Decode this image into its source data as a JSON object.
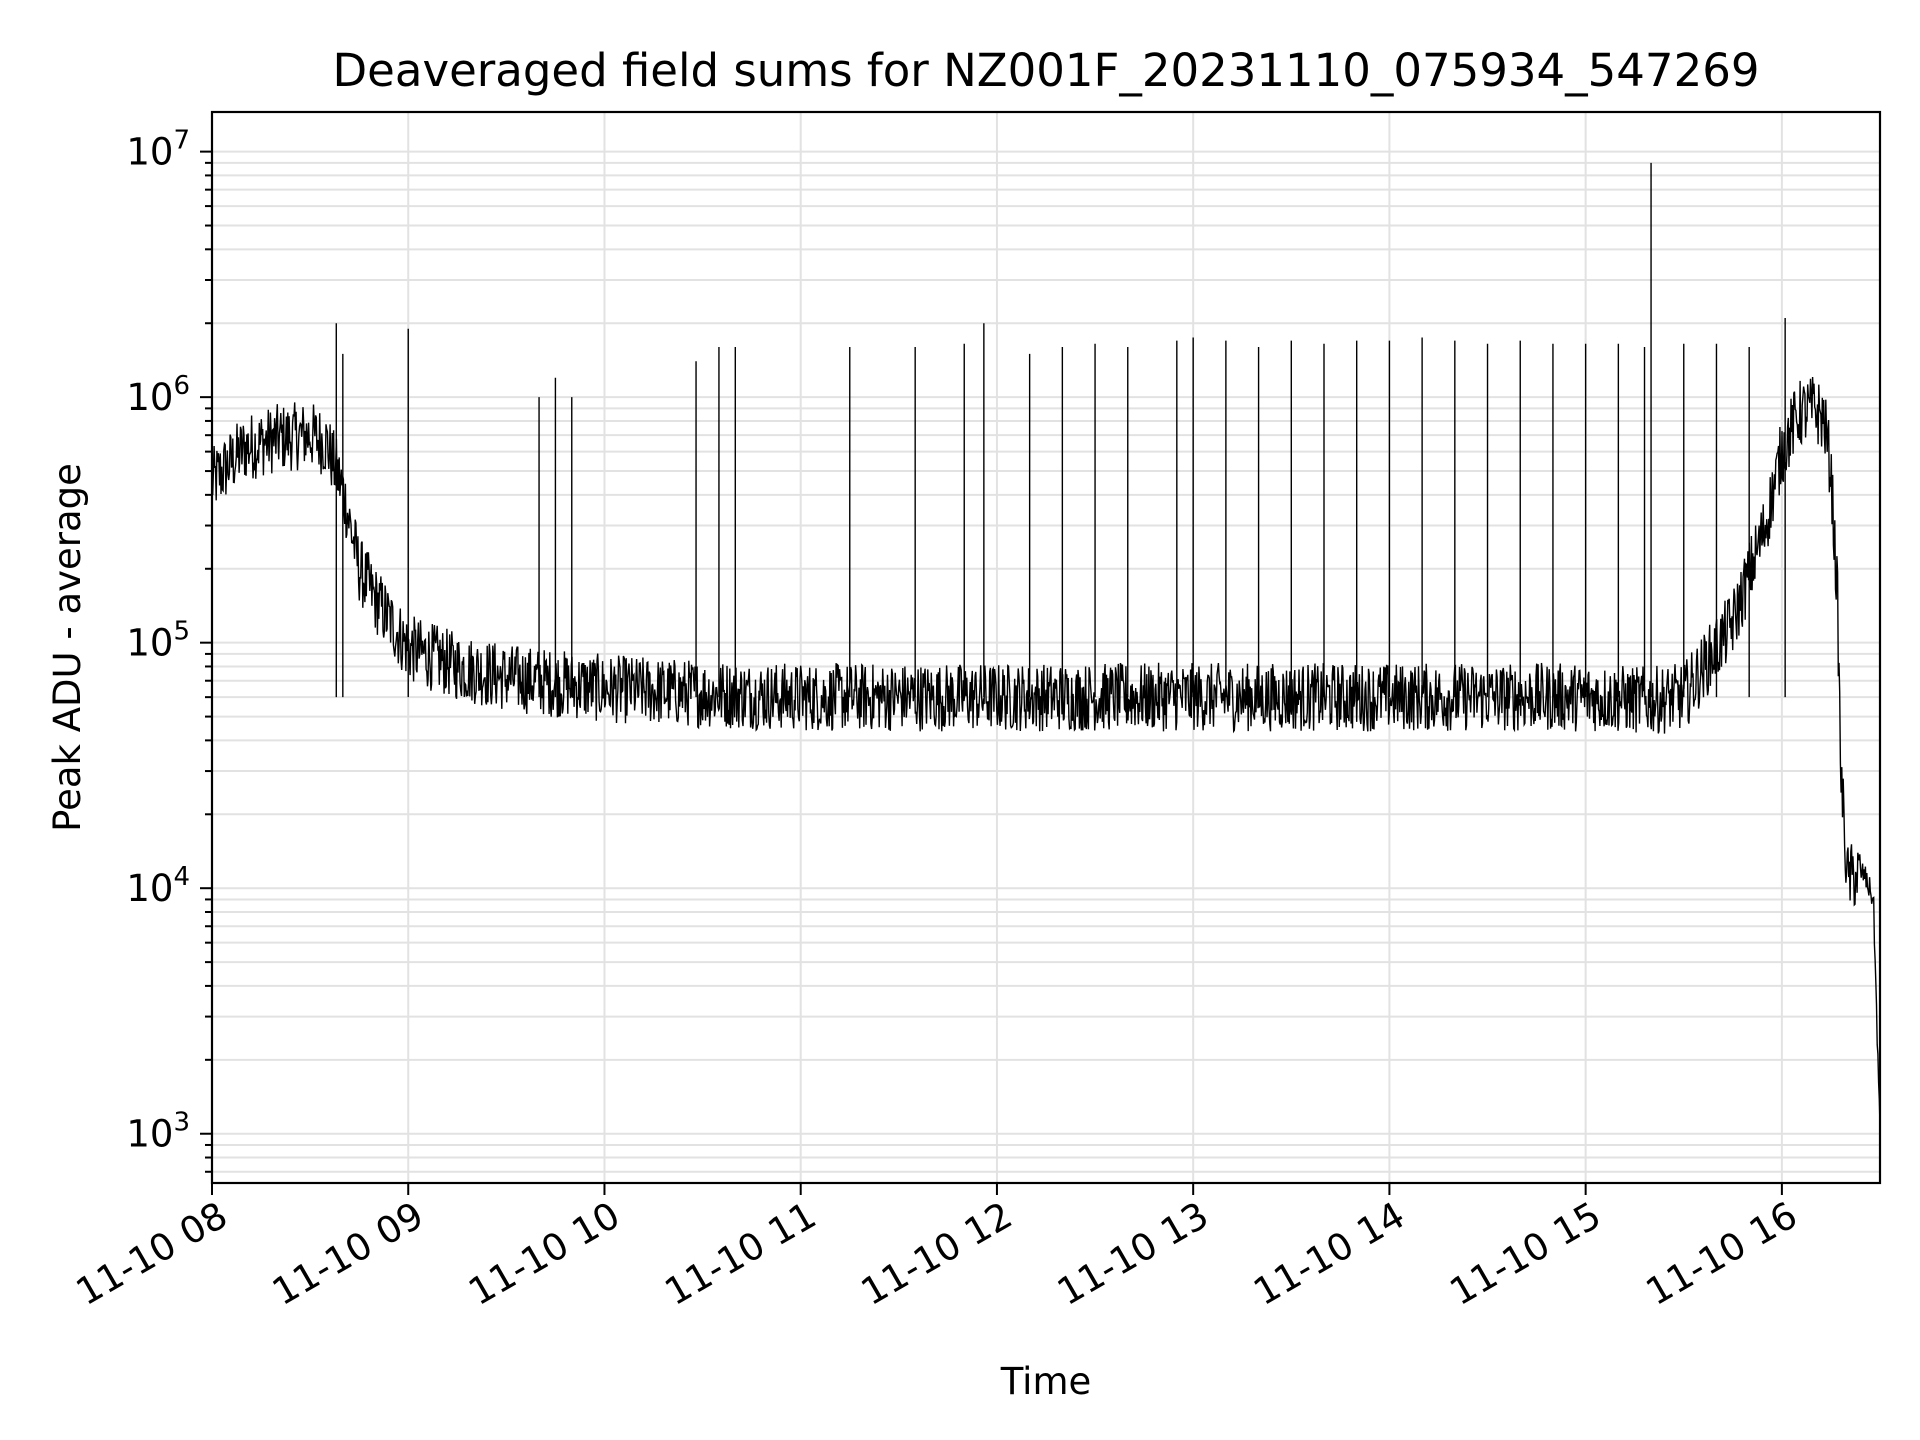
{
  "chart_data": {
    "type": "line",
    "title": "Deaveraged field sums for NZ001F_20231110_075934_547269",
    "xlabel": "Time",
    "ylabel": "Peak ADU - average",
    "yscale": "log",
    "xlim": [
      "2023-11-10 08:00",
      "2023-11-10 16:30"
    ],
    "ylim": [
      630,
      14500000
    ],
    "grid": true,
    "line_color": "#000000",
    "x_ticks": [
      "11-10 08",
      "11-10 09",
      "11-10 10",
      "11-10 11",
      "11-10 12",
      "11-10 13",
      "11-10 14",
      "11-10 15",
      "11-10 16"
    ],
    "y_ticks": [
      {
        "base": "10",
        "exp": "3",
        "value": 1000
      },
      {
        "base": "10",
        "exp": "4",
        "value": 10000
      },
      {
        "base": "10",
        "exp": "5",
        "value": 100000
      },
      {
        "base": "10",
        "exp": "6",
        "value": 1000000
      },
      {
        "base": "10",
        "exp": "7",
        "value": 10000000
      }
    ],
    "series": [
      {
        "x": [
          "2023-11-10 08:00",
          "2023-11-10 08:10",
          "2023-11-10 08:20",
          "2023-11-10 08:30",
          "2023-11-10 08:35",
          "2023-11-10 08:40",
          "2023-11-10 08:45",
          "2023-11-10 08:50",
          "2023-11-10 09:00",
          "2023-11-10 09:15",
          "2023-11-10 09:30",
          "2023-11-10 10:00",
          "2023-11-10 10:30",
          "2023-11-10 11:00",
          "2023-11-10 11:30",
          "2023-11-10 12:00",
          "2023-11-10 12:30",
          "2023-11-10 13:00",
          "2023-11-10 13:30",
          "2023-11-10 14:00",
          "2023-11-10 14:30",
          "2023-11-10 15:00",
          "2023-11-10 15:20",
          "2023-11-10 15:30",
          "2023-11-10 15:45",
          "2023-11-10 15:55",
          "2023-11-10 16:00",
          "2023-11-10 16:05",
          "2023-11-10 16:10",
          "2023-11-10 16:13",
          "2023-11-10 16:15",
          "2023-11-10 16:17",
          "2023-11-10 16:18",
          "2023-11-10 16:20",
          "2023-11-10 16:25",
          "2023-11-10 16:28",
          "2023-11-10 16:30"
        ],
        "y": [
          450000,
          620000,
          680000,
          700000,
          650000,
          420000,
          200000,
          150000,
          95000,
          80000,
          72000,
          65000,
          62000,
          60000,
          60000,
          60000,
          60000,
          60000,
          60000,
          60000,
          60000,
          60000,
          58000,
          60000,
          120000,
          300000,
          600000,
          850000,
          900000,
          800000,
          500000,
          150000,
          30000,
          11000,
          11500,
          9000,
          1000
        ]
      }
    ],
    "spikes": {
      "x": [
        "2023-11-10 08:38",
        "2023-11-10 08:40",
        "2023-11-10 09:00",
        "2023-11-10 09:40",
        "2023-11-10 09:45",
        "2023-11-10 09:50",
        "2023-11-10 10:28",
        "2023-11-10 10:35",
        "2023-11-10 10:40",
        "2023-11-10 11:15",
        "2023-11-10 11:35",
        "2023-11-10 11:50",
        "2023-11-10 11:56",
        "2023-11-10 12:10",
        "2023-11-10 12:20",
        "2023-11-10 12:30",
        "2023-11-10 12:40",
        "2023-11-10 12:55",
        "2023-11-10 13:00",
        "2023-11-10 13:10",
        "2023-11-10 13:20",
        "2023-11-10 13:30",
        "2023-11-10 13:40",
        "2023-11-10 13:50",
        "2023-11-10 14:00",
        "2023-11-10 14:10",
        "2023-11-10 14:20",
        "2023-11-10 14:30",
        "2023-11-10 14:40",
        "2023-11-10 14:50",
        "2023-11-10 15:00",
        "2023-11-10 15:10",
        "2023-11-10 15:18",
        "2023-11-10 15:20",
        "2023-11-10 15:30",
        "2023-11-10 15:40",
        "2023-11-10 15:50",
        "2023-11-10 16:01"
      ],
      "y": [
        2000000,
        1500000,
        1900000,
        1000000,
        1200000,
        1000000,
        1400000,
        1600000,
        1600000,
        1600000,
        1600000,
        1650000,
        2000000,
        1500000,
        1600000,
        1650000,
        1600000,
        1700000,
        1750000,
        1700000,
        1600000,
        1700000,
        1650000,
        1700000,
        1700000,
        1750000,
        1700000,
        1650000,
        1700000,
        1650000,
        1650000,
        1650000,
        1600000,
        9000000,
        1650000,
        1650000,
        1600000,
        2100000
      ]
    }
  }
}
